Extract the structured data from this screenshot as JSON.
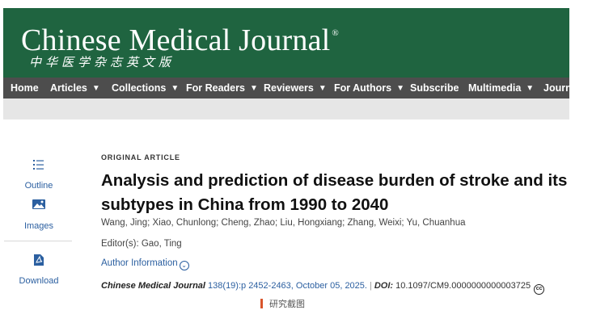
{
  "header": {
    "journal_title": "Chinese Medical Journal",
    "registered_mark": "®",
    "chinese_title": "中华医学杂志英文版",
    "banner_color": "#1f6440"
  },
  "nav": {
    "items": [
      {
        "label": "Home",
        "has_dropdown": false
      },
      {
        "label": "Articles",
        "has_dropdown": true
      },
      {
        "label": "Collections",
        "has_dropdown": true
      },
      {
        "label": "For Readers",
        "has_dropdown": true
      },
      {
        "label": "Reviewers",
        "has_dropdown": true
      },
      {
        "label": "For Authors",
        "has_dropdown": true
      },
      {
        "label": "Subscribe",
        "has_dropdown": false
      },
      {
        "label": "Multimedia",
        "has_dropdown": true
      },
      {
        "label": "Journa",
        "has_dropdown": false
      }
    ],
    "chevron": "❯"
  },
  "sidebar": {
    "outline_label": "Outline",
    "images_label": "Images",
    "download_label": "Download",
    "outline_icon": "list-icon",
    "images_icon": "image-icon",
    "download_icon": "pdf-icon",
    "accent_color": "#2b5fa0"
  },
  "article": {
    "type_label": "ORIGINAL ARTICLE",
    "title": "Analysis and prediction of disease burden of stroke and its subtypes in China from 1990 to 2040",
    "authors": "Wang, Jing; Xiao, Chunlong; Cheng, Zhao; Liu, Hongxiang; Zhang, Weixi; Yu, Chuanhua",
    "editors": "Editor(s): Gao, Ting",
    "author_info_label": "Author Information",
    "citation": {
      "journal": "Chinese Medical Journal",
      "volume_pages_date": "138(19):p 2452-2463, October 05, 2025.",
      "separator": "|",
      "doi_label": "DOI:",
      "doi_value": "10.1097/CM9.0000000000003725",
      "cc_badge": "cc"
    }
  },
  "caption": {
    "text": "研究截图"
  }
}
